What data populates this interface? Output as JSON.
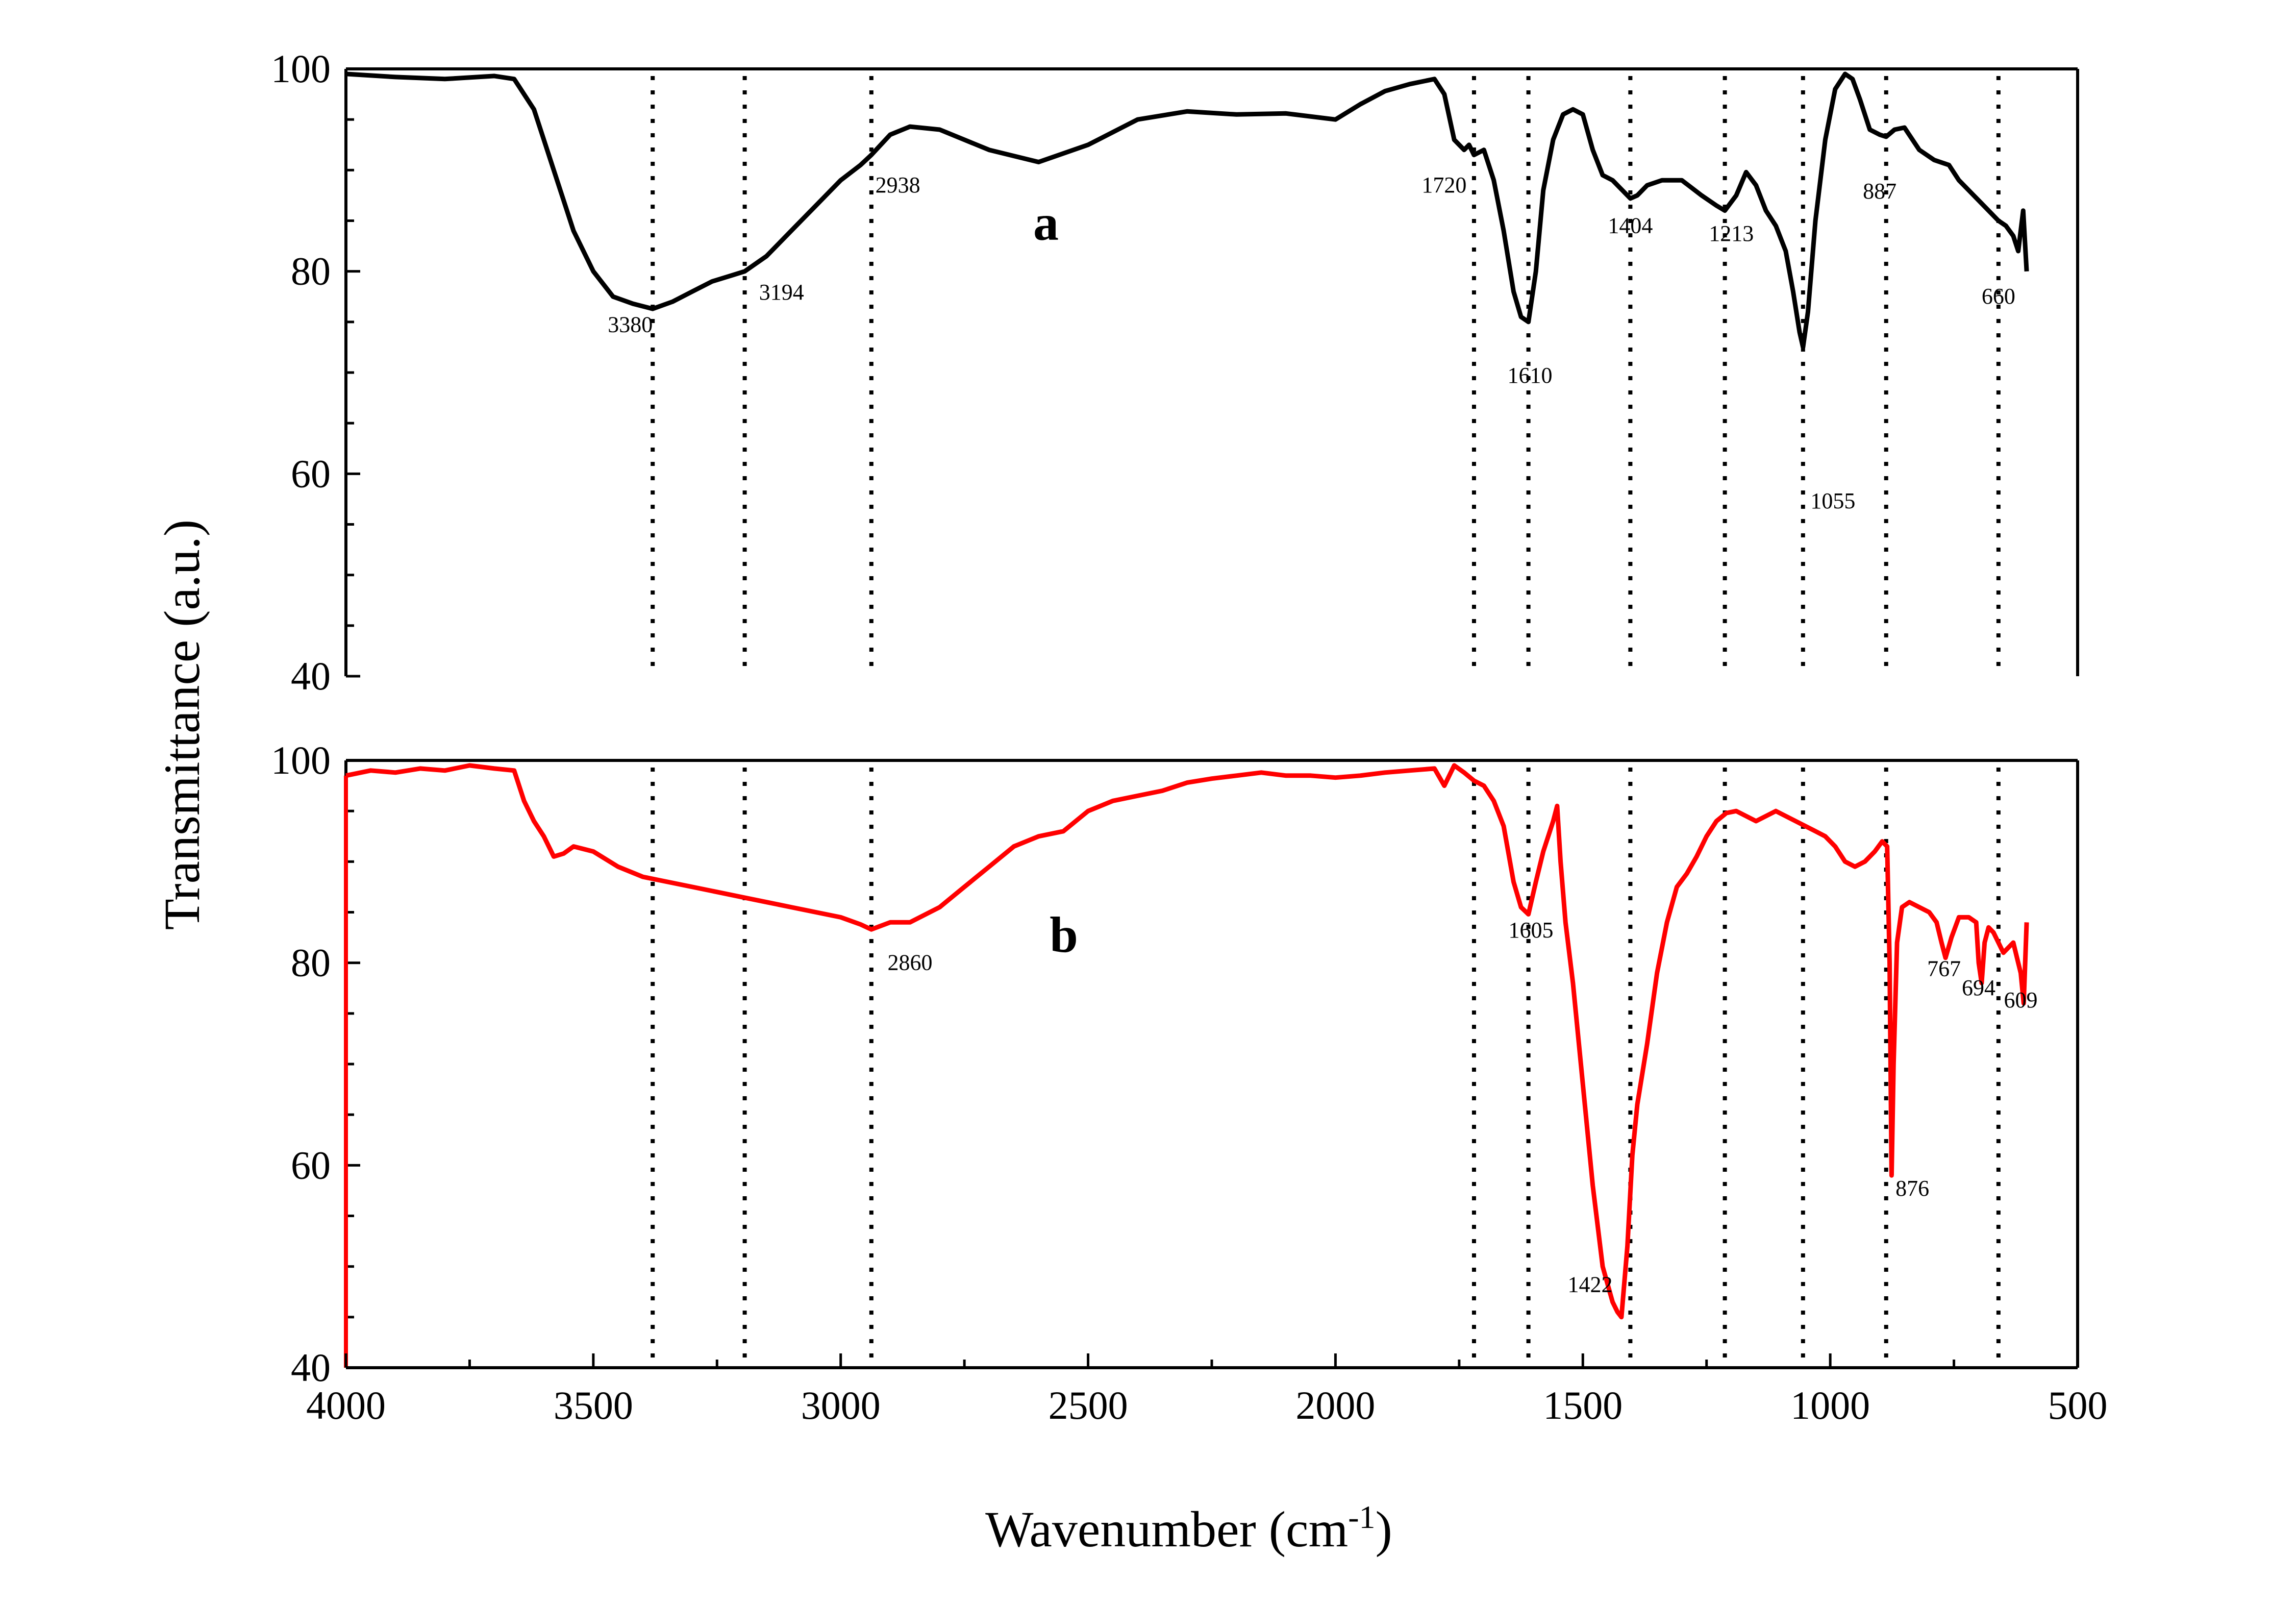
{
  "chart_data": {
    "type": "line",
    "xlabel": "Wavenumber (cm",
    "xlabel_sup": "-1",
    "xlabel_tail": ")",
    "ylabel": "Transmittance (a.u.)",
    "xlim": [
      4000,
      500
    ],
    "xticks": [
      "4000",
      "3500",
      "3000",
      "2500",
      "2000",
      "1500",
      "1000",
      "500"
    ],
    "xtick_values": [
      4000,
      3500,
      3000,
      2500,
      2000,
      1500,
      1000,
      500
    ],
    "reference_lines": [
      3380,
      3194,
      2938,
      1720,
      1610,
      1404,
      1213,
      1055,
      887,
      660
    ],
    "panels": [
      {
        "label": "a",
        "color": "#000000",
        "ylim": [
          40,
          100
        ],
        "yticks": [
          "40",
          "60",
          "80",
          "100"
        ],
        "ytick_values": [
          40,
          60,
          80,
          100
        ],
        "x": [
          4000,
          3900,
          3800,
          3700,
          3660,
          3620,
          3580,
          3540,
          3500,
          3460,
          3420,
          3380,
          3340,
          3300,
          3260,
          3220,
          3194,
          3150,
          3100,
          3050,
          3000,
          2960,
          2938,
          2900,
          2860,
          2800,
          2700,
          2600,
          2500,
          2400,
          2300,
          2200,
          2100,
          2000,
          1950,
          1900,
          1850,
          1800,
          1780,
          1760,
          1740,
          1730,
          1720,
          1700,
          1680,
          1660,
          1640,
          1625,
          1610,
          1595,
          1580,
          1560,
          1540,
          1520,
          1500,
          1480,
          1460,
          1440,
          1420,
          1404,
          1390,
          1370,
          1340,
          1300,
          1260,
          1230,
          1213,
          1190,
          1170,
          1150,
          1130,
          1110,
          1090,
          1075,
          1062,
          1055,
          1045,
          1030,
          1010,
          990,
          970,
          955,
          940,
          920,
          900,
          887,
          870,
          850,
          820,
          790,
          760,
          740,
          720,
          700,
          680,
          660,
          645,
          630,
          620,
          610,
          603
        ],
        "y": [
          99.5,
          99.2,
          99.0,
          99.3,
          99.0,
          96.0,
          90.0,
          84.0,
          80.0,
          77.5,
          76.8,
          76.3,
          77.0,
          78.0,
          79.0,
          79.6,
          80.0,
          81.5,
          84.0,
          86.5,
          89.0,
          90.5,
          91.5,
          93.5,
          94.3,
          94.0,
          92.0,
          90.8,
          92.5,
          95.0,
          95.8,
          95.5,
          95.6,
          95.0,
          96.5,
          97.8,
          98.5,
          99.0,
          97.5,
          93.0,
          92.0,
          92.5,
          91.5,
          92.0,
          89.0,
          84.0,
          78.0,
          75.5,
          75.0,
          80.0,
          88.0,
          93.0,
          95.5,
          96.0,
          95.5,
          92.0,
          89.5,
          89.0,
          88.0,
          87.2,
          87.5,
          88.5,
          89.0,
          89.0,
          87.5,
          86.5,
          86.0,
          87.5,
          89.8,
          88.5,
          86.0,
          84.5,
          82.0,
          78.0,
          74.0,
          72.5,
          76.0,
          85.0,
          93.0,
          98.0,
          99.5,
          99.0,
          97.0,
          94.0,
          93.5,
          93.3,
          94.0,
          94.2,
          92.0,
          91.0,
          90.5,
          89.0,
          88.0,
          87.0,
          86.0,
          85.0,
          84.5,
          83.5,
          82.0,
          86.0,
          80.0
        ],
        "annotations": [
          {
            "text": "3380",
            "x": 3380,
            "y": 74.0,
            "anchor": "end"
          },
          {
            "text": "3194",
            "x": 3165,
            "y": 77.2,
            "anchor": "start"
          },
          {
            "text": "2938",
            "x": 2930,
            "y": 87.8,
            "anchor": "start"
          },
          {
            "text": "1720",
            "x": 1735,
            "y": 87.8,
            "anchor": "end"
          },
          {
            "text": "1610",
            "x": 1607,
            "y": 69.0,
            "anchor": "middle"
          },
          {
            "text": "1404",
            "x": 1404,
            "y": 83.8,
            "anchor": "middle"
          },
          {
            "text": "1213",
            "x": 1200,
            "y": 83.0,
            "anchor": "middle"
          },
          {
            "text": "1055",
            "x": 1040,
            "y": 56.6,
            "anchor": "start"
          },
          {
            "text": "887",
            "x": 900,
            "y": 87.2,
            "anchor": "middle"
          },
          {
            "text": "660",
            "x": 660,
            "y": 76.8,
            "anchor": "middle"
          }
        ]
      },
      {
        "label": "b",
        "color": "#ff0000",
        "ylim": [
          40,
          100
        ],
        "yticks": [
          "40",
          "60",
          "80",
          "100"
        ],
        "ytick_values": [
          40,
          60,
          80,
          100
        ],
        "x": [
          4000,
          3950,
          3900,
          3850,
          3800,
          3750,
          3700,
          3660,
          3640,
          3620,
          3600,
          3580,
          3560,
          3540,
          3500,
          3450,
          3400,
          3350,
          3300,
          3250,
          3200,
          3150,
          3100,
          3050,
          3000,
          2960,
          2938,
          2900,
          2860,
          2800,
          2750,
          2700,
          2650,
          2600,
          2550,
          2500,
          2450,
          2400,
          2350,
          2300,
          2250,
          2200,
          2150,
          2100,
          2050,
          2000,
          1950,
          1900,
          1850,
          1800,
          1780,
          1760,
          1740,
          1720,
          1700,
          1680,
          1660,
          1640,
          1625,
          1610,
          1595,
          1580,
          1570,
          1560,
          1552,
          1545,
          1535,
          1520,
          1500,
          1480,
          1460,
          1440,
          1430,
          1422,
          1410,
          1400,
          1390,
          1370,
          1350,
          1330,
          1310,
          1290,
          1270,
          1250,
          1230,
          1210,
          1190,
          1170,
          1150,
          1130,
          1110,
          1090,
          1070,
          1050,
          1030,
          1010,
          990,
          970,
          950,
          930,
          910,
          895,
          885,
          880,
          876,
          872,
          865,
          855,
          840,
          820,
          800,
          785,
          775,
          767,
          755,
          740,
          720,
          705,
          700,
          694,
          688,
          680,
          670,
          660,
          650,
          640,
          630,
          620,
          615,
          609,
          603
        ],
        "y": [
          98.5,
          99.0,
          98.8,
          99.2,
          99.0,
          99.5,
          99.2,
          99.0,
          96.0,
          94.0,
          92.5,
          90.5,
          90.8,
          91.5,
          91.0,
          89.5,
          88.5,
          88.0,
          87.5,
          87.0,
          86.5,
          86.0,
          85.5,
          85.0,
          84.5,
          83.8,
          83.3,
          84.0,
          84.0,
          85.5,
          87.5,
          89.5,
          91.5,
          92.5,
          93.0,
          95.0,
          96.0,
          96.5,
          97.0,
          97.8,
          98.2,
          98.5,
          98.8,
          98.5,
          98.5,
          98.3,
          98.5,
          98.8,
          99.0,
          99.2,
          97.5,
          99.5,
          98.8,
          98.0,
          97.5,
          96.0,
          93.5,
          88.0,
          85.5,
          84.8,
          88.0,
          91.0,
          92.5,
          94.0,
          95.5,
          90.0,
          84.0,
          78.0,
          68.0,
          58.0,
          50.0,
          46.5,
          45.5,
          45.0,
          52.0,
          61.0,
          66.0,
          72.0,
          79.0,
          84.0,
          87.5,
          88.8,
          90.5,
          92.5,
          94.0,
          94.8,
          95.0,
          94.5,
          94.0,
          94.5,
          95.0,
          94.5,
          94.0,
          93.5,
          93.0,
          92.5,
          91.5,
          90.0,
          89.5,
          90.0,
          91.0,
          92.0,
          91.5,
          80.0,
          59.0,
          70.0,
          82.0,
          85.5,
          86.0,
          85.5,
          85.0,
          84.0,
          82.0,
          80.5,
          82.5,
          84.5,
          84.5,
          84.0,
          80.0,
          78.0,
          82.0,
          83.5,
          83.0,
          82.0,
          81.0,
          81.5,
          82.0,
          80.0,
          79.0,
          76.0,
          84.0
        ],
        "annotations": [
          {
            "text": "2860",
            "x": 2860,
            "y": 79.3,
            "anchor": "middle"
          },
          {
            "text": "1605",
            "x": 1605,
            "y": 82.5,
            "anchor": "middle"
          },
          {
            "text": "1422",
            "x": 1440,
            "y": 47.5,
            "anchor": "end"
          },
          {
            "text": "876",
            "x": 868,
            "y": 57.0,
            "anchor": "start"
          },
          {
            "text": "767",
            "x": 770,
            "y": 78.7,
            "anchor": "middle"
          },
          {
            "text": "694",
            "x": 700,
            "y": 76.8,
            "anchor": "middle"
          },
          {
            "text": "609",
            "x": 615,
            "y": 75.6,
            "anchor": "middle"
          }
        ]
      }
    ]
  }
}
